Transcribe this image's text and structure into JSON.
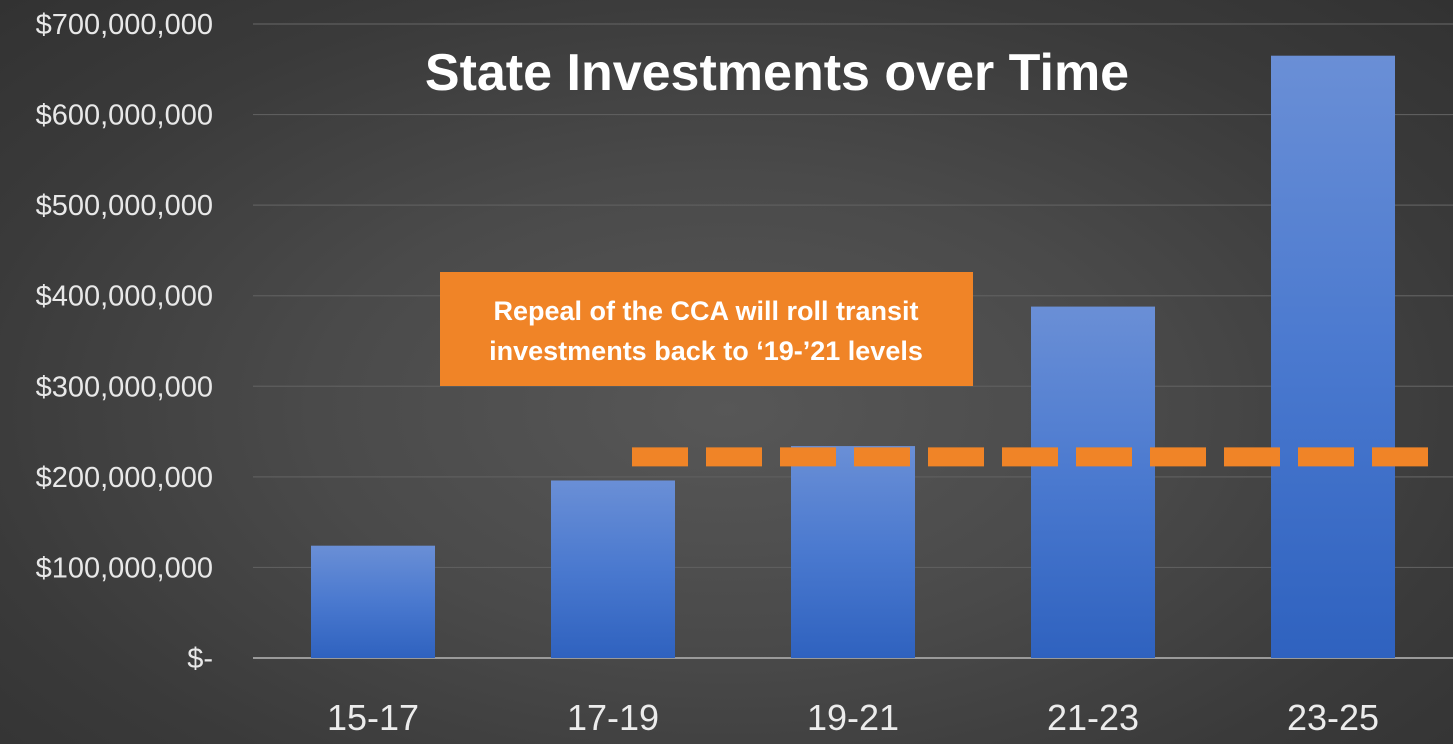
{
  "chart_data": {
    "type": "bar",
    "title": "State Investments over Time",
    "categories": [
      "15-17",
      "17-19",
      "19-21",
      "21-23",
      "23-25"
    ],
    "values": [
      124000000,
      196000000,
      234000000,
      388000000,
      665000000
    ],
    "ylim": [
      0,
      700000000
    ],
    "yticks": [
      0,
      100000000,
      200000000,
      300000000,
      400000000,
      500000000,
      600000000,
      700000000
    ],
    "ytick_labels": [
      "$-",
      "$100,000,000",
      "$200,000,000",
      "$300,000,000",
      "$400,000,000",
      "$500,000,000",
      "$600,000,000",
      "$700,000,000"
    ],
    "grid": true,
    "bar_color": "#4472C4",
    "reference_line": {
      "value": 222000000,
      "style": "dashed",
      "color": "#F08427"
    },
    "annotation": {
      "lines": [
        "Repeal of the CCA will roll transit",
        "investments back to ‘19-’21 levels"
      ],
      "background": "#F08427"
    }
  }
}
